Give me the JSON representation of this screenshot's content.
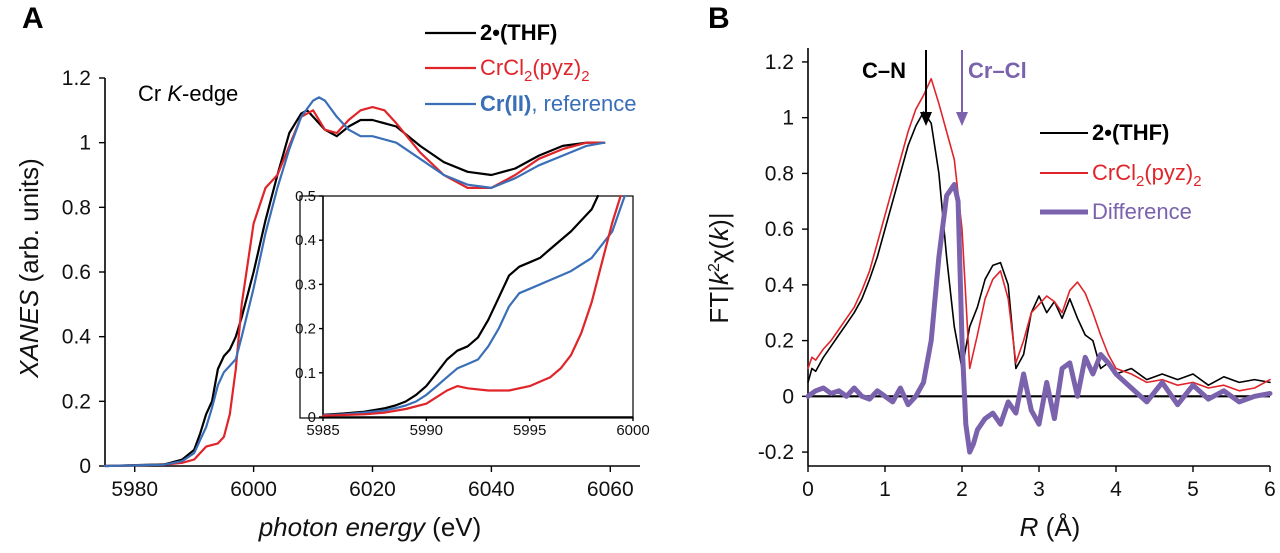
{
  "chart_data": [
    {
      "panel": "A",
      "type": "line",
      "title": "Cr K-edge",
      "xlabel": "photon energy (eV)",
      "ylabel": "XANES (arb. units)",
      "xlim": [
        5975,
        6065
      ],
      "ylim": [
        0,
        1.2
      ],
      "xticks": [
        5980,
        6000,
        6020,
        6040,
        6060
      ],
      "yticks": [
        0,
        0.2,
        0.4,
        0.6,
        0.8,
        1,
        1.2
      ],
      "legend": [
        {
          "label_main": "2•(THF)",
          "color": "#000000"
        },
        {
          "label_main": "CrCl",
          "sub1": "2",
          "mid": "(pyz)",
          "sub2": "2",
          "color": "#e0252a"
        },
        {
          "label_main": "Cr(II)",
          "label_suffix": ", reference",
          "color": "#3a6fb8"
        }
      ],
      "series": [
        {
          "name": "2•(THF)",
          "color": "#000000",
          "x": [
            5975,
            5985,
            5988,
            5990,
            5991,
            5992,
            5993,
            5994,
            5995,
            5996,
            5997,
            5998,
            6000,
            6002,
            6004,
            6006,
            6008,
            6009,
            6010,
            6012,
            6014,
            6016,
            6018,
            6020,
            6024,
            6028,
            6032,
            6036,
            6040,
            6044,
            6048,
            6052,
            6056,
            6059
          ],
          "y": [
            0,
            0.005,
            0.02,
            0.05,
            0.1,
            0.16,
            0.2,
            0.3,
            0.34,
            0.36,
            0.4,
            0.46,
            0.6,
            0.76,
            0.9,
            1.03,
            1.09,
            1.1,
            1.08,
            1.04,
            1.02,
            1.05,
            1.07,
            1.07,
            1.05,
            0.99,
            0.94,
            0.91,
            0.9,
            0.92,
            0.96,
            0.99,
            1.0,
            1.0
          ]
        },
        {
          "name": "CrCl2(pyz)2",
          "color": "#e0252a",
          "x": [
            5975,
            5985,
            5988,
            5990,
            5992,
            5994,
            5995,
            5996,
            5997,
            5998,
            6000,
            6002,
            6004,
            6006,
            6008,
            6010,
            6012,
            6014,
            6016,
            6018,
            6020,
            6022,
            6024,
            6028,
            6032,
            6036,
            6040,
            6044,
            6048,
            6052,
            6056,
            6059
          ],
          "y": [
            0,
            0.004,
            0.01,
            0.02,
            0.06,
            0.07,
            0.09,
            0.16,
            0.3,
            0.5,
            0.75,
            0.86,
            0.9,
            0.99,
            1.08,
            1.1,
            1.04,
            1.03,
            1.07,
            1.1,
            1.11,
            1.1,
            1.06,
            0.97,
            0.9,
            0.86,
            0.86,
            0.9,
            0.95,
            0.98,
            1.0,
            1.0
          ]
        },
        {
          "name": "Cr(II), reference",
          "color": "#3a6fb8",
          "x": [
            5975,
            5985,
            5988,
            5990,
            5991,
            5992,
            5993,
            5994,
            5995,
            5996,
            5997,
            5998,
            6000,
            6002,
            6004,
            6006,
            6008,
            6010,
            6011,
            6012,
            6014,
            6016,
            6018,
            6020,
            6024,
            6028,
            6032,
            6036,
            6040,
            6044,
            6048,
            6052,
            6056,
            6059
          ],
          "y": [
            0,
            0.004,
            0.015,
            0.04,
            0.08,
            0.12,
            0.18,
            0.25,
            0.29,
            0.31,
            0.33,
            0.4,
            0.55,
            0.72,
            0.86,
            0.98,
            1.08,
            1.13,
            1.14,
            1.13,
            1.08,
            1.04,
            1.02,
            1.02,
            1.0,
            0.95,
            0.9,
            0.87,
            0.86,
            0.89,
            0.93,
            0.96,
            0.99,
            1.0
          ]
        }
      ]
    },
    {
      "panel": "A-inset",
      "type": "line",
      "xlim": [
        5985,
        6000
      ],
      "ylim": [
        0,
        0.5
      ],
      "xticks": [
        5985,
        5990,
        5995,
        6000
      ],
      "yticks": [
        0,
        0.1,
        0.2,
        0.3,
        0.4,
        0.5
      ],
      "series": [
        {
          "name": "2•(THF)",
          "color": "#000000",
          "x": [
            5985,
            5986,
            5987,
            5988,
            5988.5,
            5989,
            5989.5,
            5990,
            5990.5,
            5991,
            5991.5,
            5992,
            5992.5,
            5993,
            5993.5,
            5994,
            5994.5,
            5995,
            5995.5,
            5996,
            5997,
            5998,
            5998.3
          ],
          "y": [
            0.005,
            0.008,
            0.012,
            0.02,
            0.026,
            0.035,
            0.05,
            0.07,
            0.1,
            0.13,
            0.15,
            0.16,
            0.18,
            0.22,
            0.27,
            0.32,
            0.34,
            0.35,
            0.36,
            0.38,
            0.42,
            0.47,
            0.5
          ]
        },
        {
          "name": "Cr(II), reference",
          "color": "#3a6fb8",
          "x": [
            5985,
            5986,
            5987,
            5988,
            5988.5,
            5989,
            5989.5,
            5990,
            5990.5,
            5991,
            5991.5,
            5992,
            5992.5,
            5993,
            5993.5,
            5994,
            5994.5,
            5995,
            5996,
            5997,
            5998,
            5999,
            5999.6
          ],
          "y": [
            0.004,
            0.006,
            0.01,
            0.015,
            0.02,
            0.026,
            0.035,
            0.05,
            0.07,
            0.09,
            0.11,
            0.12,
            0.13,
            0.16,
            0.2,
            0.25,
            0.28,
            0.29,
            0.31,
            0.33,
            0.36,
            0.42,
            0.5
          ]
        },
        {
          "name": "CrCl2(pyz)2",
          "color": "#e0252a",
          "x": [
            5985,
            5987,
            5988,
            5989,
            5990,
            5990.5,
            5991,
            5991.5,
            5992,
            5993,
            5994,
            5995,
            5996,
            5996.5,
            5997,
            5997.5,
            5998,
            5998.5,
            5999,
            5999.4
          ],
          "y": [
            0.003,
            0.006,
            0.01,
            0.018,
            0.03,
            0.045,
            0.06,
            0.07,
            0.065,
            0.06,
            0.06,
            0.07,
            0.09,
            0.11,
            0.14,
            0.19,
            0.26,
            0.35,
            0.44,
            0.5
          ]
        }
      ]
    },
    {
      "panel": "B",
      "type": "line",
      "xlabel": "R (Å)",
      "ylabel": "FT|k²χ(k)|",
      "xlim": [
        0,
        6
      ],
      "ylim": [
        -0.25,
        1.25
      ],
      "xticks": [
        0,
        1,
        2,
        3,
        4,
        5,
        6
      ],
      "yticks": [
        -0.2,
        0,
        0.2,
        0.4,
        0.6,
        0.8,
        1,
        1.2
      ],
      "annotations": [
        {
          "text": "C–N",
          "x": 1.5,
          "color": "#000000"
        },
        {
          "text": "Cr–Cl",
          "x": 1.95,
          "color": "#7b62ad"
        }
      ],
      "legend": [
        {
          "label_main": "2•(THF)",
          "color": "#000000"
        },
        {
          "label_main": "CrCl",
          "sub1": "2",
          "mid": "(pyz)",
          "sub2": "2",
          "color": "#e0252a"
        },
        {
          "label_main": "Difference",
          "color": "#7b62ad"
        }
      ],
      "series": [
        {
          "name": "2•(THF)",
          "color": "#000000",
          "width": 1.6,
          "x": [
            0,
            0.05,
            0.1,
            0.2,
            0.3,
            0.4,
            0.5,
            0.6,
            0.7,
            0.8,
            0.9,
            1.0,
            1.1,
            1.2,
            1.3,
            1.4,
            1.5,
            1.6,
            1.7,
            1.8,
            1.9,
            2.0,
            2.1,
            2.2,
            2.3,
            2.4,
            2.5,
            2.6,
            2.7,
            2.8,
            2.9,
            3.0,
            3.1,
            3.2,
            3.3,
            3.4,
            3.5,
            3.6,
            3.7,
            3.8,
            3.9,
            4.0,
            4.2,
            4.4,
            4.6,
            4.8,
            5.0,
            5.2,
            5.4,
            5.6,
            5.8,
            6.0
          ],
          "y": [
            0.05,
            0.1,
            0.09,
            0.14,
            0.18,
            0.22,
            0.26,
            0.3,
            0.35,
            0.42,
            0.5,
            0.6,
            0.7,
            0.8,
            0.9,
            0.97,
            1.02,
            0.98,
            0.8,
            0.5,
            0.25,
            0.1,
            0.25,
            0.32,
            0.42,
            0.47,
            0.48,
            0.4,
            0.1,
            0.15,
            0.3,
            0.36,
            0.3,
            0.34,
            0.28,
            0.35,
            0.28,
            0.22,
            0.2,
            0.1,
            0.12,
            0.08,
            0.1,
            0.06,
            0.08,
            0.06,
            0.08,
            0.04,
            0.07,
            0.05,
            0.06,
            0.05
          ]
        },
        {
          "name": "CrCl2(pyz)2",
          "color": "#e0252a",
          "width": 1.6,
          "x": [
            0,
            0.05,
            0.1,
            0.2,
            0.3,
            0.4,
            0.5,
            0.6,
            0.7,
            0.8,
            0.9,
            1.0,
            1.1,
            1.2,
            1.3,
            1.4,
            1.5,
            1.6,
            1.7,
            1.8,
            1.9,
            2.0,
            2.1,
            2.2,
            2.3,
            2.4,
            2.5,
            2.6,
            2.7,
            2.8,
            2.9,
            3.0,
            3.1,
            3.2,
            3.3,
            3.4,
            3.5,
            3.6,
            3.7,
            3.8,
            3.9,
            4.0,
            4.2,
            4.4,
            4.6,
            4.8,
            5.0,
            5.2,
            5.4,
            5.6,
            5.8,
            6.0
          ],
          "y": [
            0.1,
            0.14,
            0.13,
            0.17,
            0.2,
            0.24,
            0.28,
            0.32,
            0.38,
            0.45,
            0.55,
            0.65,
            0.75,
            0.85,
            0.95,
            1.03,
            1.08,
            1.14,
            1.05,
            0.95,
            0.85,
            0.6,
            0.1,
            0.22,
            0.35,
            0.42,
            0.45,
            0.35,
            0.12,
            0.2,
            0.3,
            0.33,
            0.36,
            0.34,
            0.3,
            0.38,
            0.41,
            0.37,
            0.3,
            0.22,
            0.15,
            0.1,
            0.08,
            0.05,
            0.06,
            0.04,
            0.05,
            0.03,
            0.04,
            0.02,
            0.03,
            0.06
          ]
        },
        {
          "name": "Difference",
          "color": "#7b62ad",
          "width": 5,
          "x": [
            0,
            0.1,
            0.2,
            0.3,
            0.4,
            0.5,
            0.6,
            0.7,
            0.8,
            0.9,
            1.0,
            1.1,
            1.2,
            1.3,
            1.4,
            1.5,
            1.6,
            1.7,
            1.8,
            1.9,
            1.95,
            2.0,
            2.05,
            2.1,
            2.15,
            2.2,
            2.3,
            2.4,
            2.5,
            2.6,
            2.7,
            2.8,
            2.9,
            3.0,
            3.1,
            3.2,
            3.3,
            3.4,
            3.5,
            3.6,
            3.7,
            3.8,
            3.9,
            4.0,
            4.2,
            4.4,
            4.6,
            4.8,
            5.0,
            5.2,
            5.4,
            5.6,
            5.8,
            6.0
          ],
          "y": [
            0,
            0.02,
            0.03,
            0.01,
            0.02,
            0.0,
            0.03,
            0.0,
            -0.01,
            0.02,
            0.0,
            -0.02,
            0.03,
            -0.03,
            0.0,
            0.05,
            0.2,
            0.5,
            0.72,
            0.76,
            0.7,
            0.2,
            -0.1,
            -0.2,
            -0.17,
            -0.12,
            -0.08,
            -0.06,
            -0.1,
            -0.02,
            -0.06,
            0.08,
            -0.05,
            -0.1,
            0.05,
            -0.08,
            0.1,
            0.12,
            0.0,
            0.14,
            0.08,
            0.15,
            0.12,
            0.08,
            0.03,
            -0.02,
            0.05,
            -0.03,
            0.04,
            -0.01,
            0.02,
            -0.02,
            0.0,
            0.01
          ]
        }
      ]
    }
  ]
}
